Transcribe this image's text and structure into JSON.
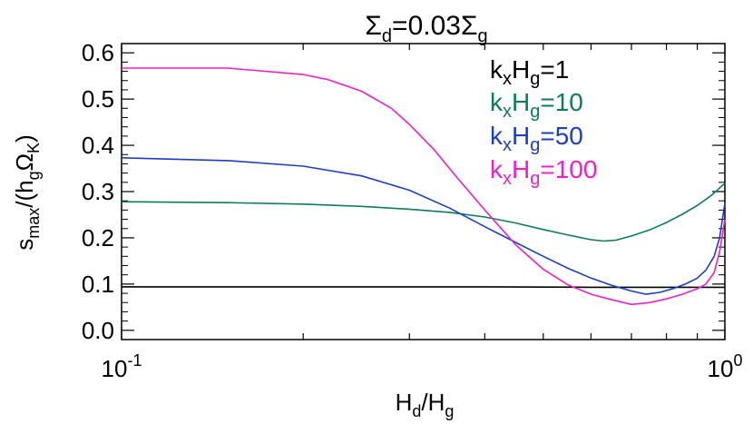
{
  "chart_data": {
    "type": "line",
    "title": {
      "main": "Σ",
      "sub1": "d",
      "mid": "=0.03Σ",
      "sub2": "g"
    },
    "xlabel": {
      "a": "H",
      "a_sub": "d",
      "slash": "/H",
      "b_sub": "g"
    },
    "ylabel": {
      "a": "s",
      "a_sub": "max",
      "mid": "/(h",
      "b_sub": "g",
      "c": "Ω",
      "c_sub": "K",
      "end": ")"
    },
    "xscale": "log",
    "xlim": [
      0.1,
      1.0
    ],
    "ylim": [
      -0.02,
      0.62
    ],
    "yticks": [
      {
        "value": 0.0,
        "label": "0.0"
      },
      {
        "value": 0.1,
        "label": "0.1"
      },
      {
        "value": 0.2,
        "label": "0.2"
      },
      {
        "value": 0.3,
        "label": "0.3"
      },
      {
        "value": 0.4,
        "label": "0.4"
      },
      {
        "value": 0.5,
        "label": "0.5"
      },
      {
        "value": 0.6,
        "label": "0.6"
      }
    ],
    "xticks": [
      {
        "value": 0.1,
        "base": "10",
        "exp": "-1"
      },
      {
        "value": 1.0,
        "base": "10",
        "exp": "0"
      }
    ],
    "legend_position": "top-right",
    "series": [
      {
        "name": "1",
        "color": "#000000",
        "x": [
          0.1,
          0.2,
          0.4,
          0.6,
          0.8,
          1.0
        ],
        "y": [
          0.094,
          0.094,
          0.094,
          0.093,
          0.093,
          0.093
        ]
      },
      {
        "name": "10",
        "color": "#0b7d57",
        "x": [
          0.1,
          0.15,
          0.2,
          0.25,
          0.3,
          0.35,
          0.4,
          0.45,
          0.5,
          0.55,
          0.6,
          0.63,
          0.66,
          0.7,
          0.75,
          0.8,
          0.85,
          0.9,
          0.95,
          1.0
        ],
        "y": [
          0.278,
          0.276,
          0.273,
          0.268,
          0.262,
          0.255,
          0.245,
          0.232,
          0.218,
          0.206,
          0.196,
          0.193,
          0.195,
          0.204,
          0.217,
          0.233,
          0.251,
          0.27,
          0.292,
          0.318
        ]
      },
      {
        "name": "50",
        "color": "#1c3ec7",
        "x": [
          0.1,
          0.15,
          0.2,
          0.25,
          0.3,
          0.35,
          0.4,
          0.45,
          0.5,
          0.55,
          0.6,
          0.65,
          0.7,
          0.74,
          0.78,
          0.82,
          0.86,
          0.9,
          0.93,
          0.96,
          0.98,
          1.0
        ],
        "y": [
          0.373,
          0.367,
          0.355,
          0.334,
          0.303,
          0.264,
          0.224,
          0.19,
          0.16,
          0.134,
          0.113,
          0.097,
          0.085,
          0.078,
          0.082,
          0.09,
          0.1,
          0.113,
          0.13,
          0.16,
          0.2,
          0.275
        ]
      },
      {
        "name": "100",
        "color": "#f020c7",
        "x": [
          0.1,
          0.15,
          0.2,
          0.22,
          0.25,
          0.28,
          0.3,
          0.33,
          0.36,
          0.4,
          0.45,
          0.5,
          0.55,
          0.6,
          0.65,
          0.7,
          0.75,
          0.8,
          0.85,
          0.9,
          0.93,
          0.96,
          0.98,
          1.0
        ],
        "y": [
          0.567,
          0.567,
          0.553,
          0.542,
          0.517,
          0.48,
          0.445,
          0.39,
          0.33,
          0.26,
          0.185,
          0.132,
          0.098,
          0.078,
          0.066,
          0.056,
          0.06,
          0.068,
          0.078,
          0.09,
          0.1,
          0.125,
          0.17,
          0.24
        ]
      }
    ],
    "legend_label": {
      "k": "k",
      "k_sub": "x",
      "h": "H",
      "h_sub": "g",
      "eq": "="
    }
  }
}
